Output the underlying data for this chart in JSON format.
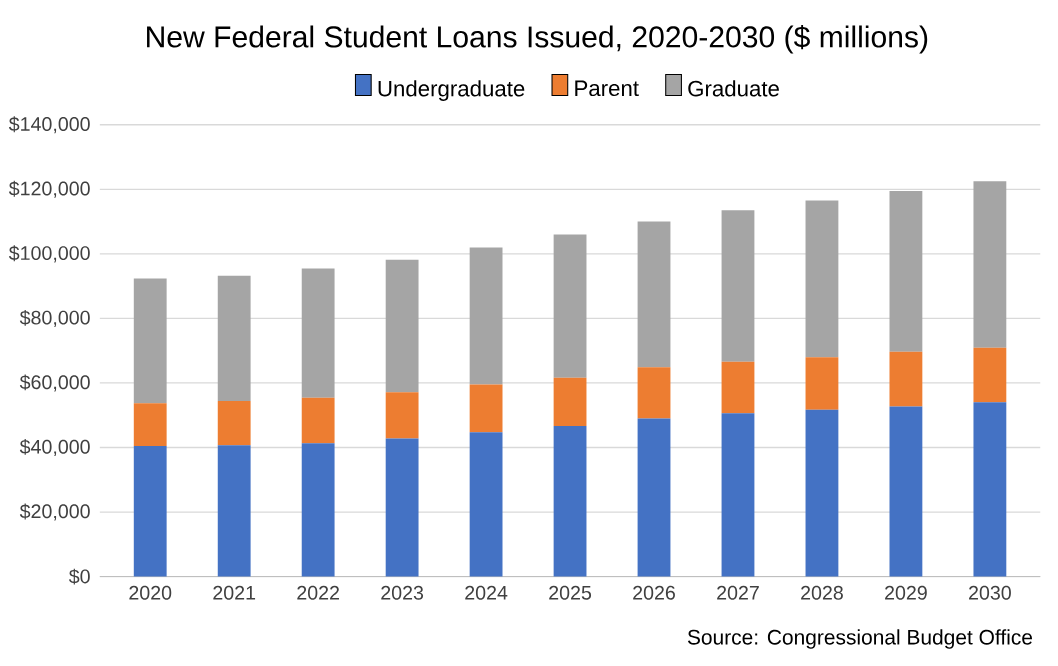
{
  "chart_data": {
    "type": "bar",
    "stacked": true,
    "title": "New Federal Student Loans Issued, 2020-2030 ($ millions)",
    "categories": [
      "2020",
      "2021",
      "2022",
      "2023",
      "2024",
      "2025",
      "2026",
      "2027",
      "2028",
      "2029",
      "2030"
    ],
    "series": [
      {
        "name": "Undergraduate",
        "color": "#4472c4",
        "values": [
          40500,
          40700,
          41300,
          42800,
          44700,
          46700,
          49000,
          50600,
          51700,
          52700,
          54000
        ]
      },
      {
        "name": "Parent",
        "color": "#ed7d31",
        "values": [
          13200,
          13700,
          14100,
          14300,
          14800,
          14900,
          15900,
          16000,
          16300,
          17000,
          16900
        ]
      },
      {
        "name": "Graduate",
        "color": "#a5a5a5",
        "values": [
          38700,
          38800,
          40100,
          41100,
          42500,
          44400,
          45100,
          46900,
          48500,
          49800,
          51600
        ]
      }
    ],
    "ylim": [
      0,
      140000
    ],
    "yticks": [
      {
        "value": 0,
        "label": "$0"
      },
      {
        "value": 20000,
        "label": "$20,000"
      },
      {
        "value": 40000,
        "label": "$40,000"
      },
      {
        "value": 60000,
        "label": "$60,000"
      },
      {
        "value": 80000,
        "label": "$80,000"
      },
      {
        "value": 100000,
        "label": "$100,000"
      },
      {
        "value": 120000,
        "label": "$120,000"
      },
      {
        "value": 140000,
        "label": "$140,000"
      }
    ],
    "grid": "y",
    "legend": "top",
    "annotations": [
      "Source: Congressional Budget Office"
    ]
  }
}
